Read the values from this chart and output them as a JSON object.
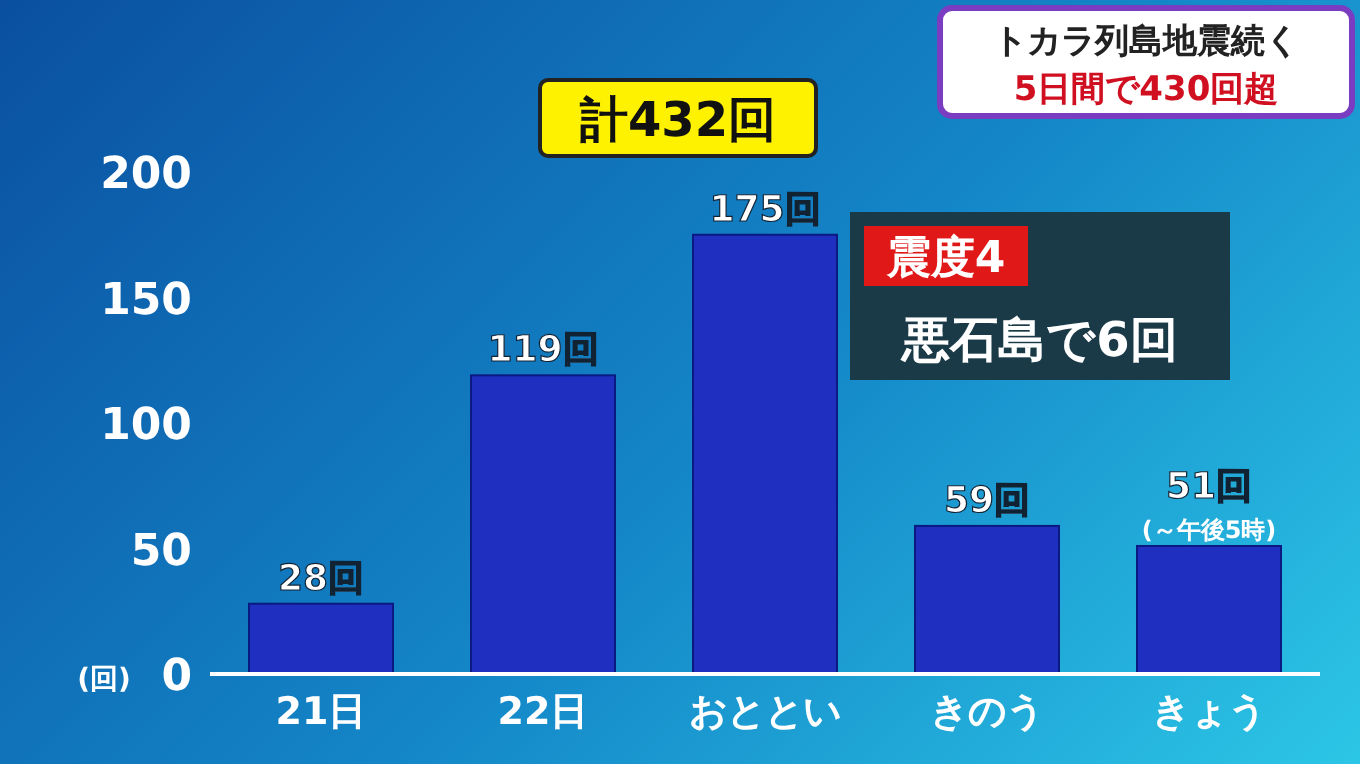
{
  "chart_data": {
    "type": "bar",
    "title": "計432回",
    "ylabel": "(回)",
    "categories": [
      "21日",
      "22日",
      "おととい",
      "きのう",
      "きょう"
    ],
    "values": [
      28,
      119,
      175,
      59,
      51
    ],
    "value_labels": [
      "28回",
      "119回",
      "175回",
      "59回",
      "51回"
    ],
    "color": "#1f2fc0",
    "ylim": [
      0,
      200
    ],
    "yticks": [
      0,
      50,
      100,
      150,
      200
    ],
    "annotations": [
      "トカラ列島地震続く",
      "5日間で430回超",
      "震度4",
      "悪石島で6回",
      {
        "text": "(～午後5時)",
        "x": "きょう",
        "y": 51
      }
    ]
  }
}
